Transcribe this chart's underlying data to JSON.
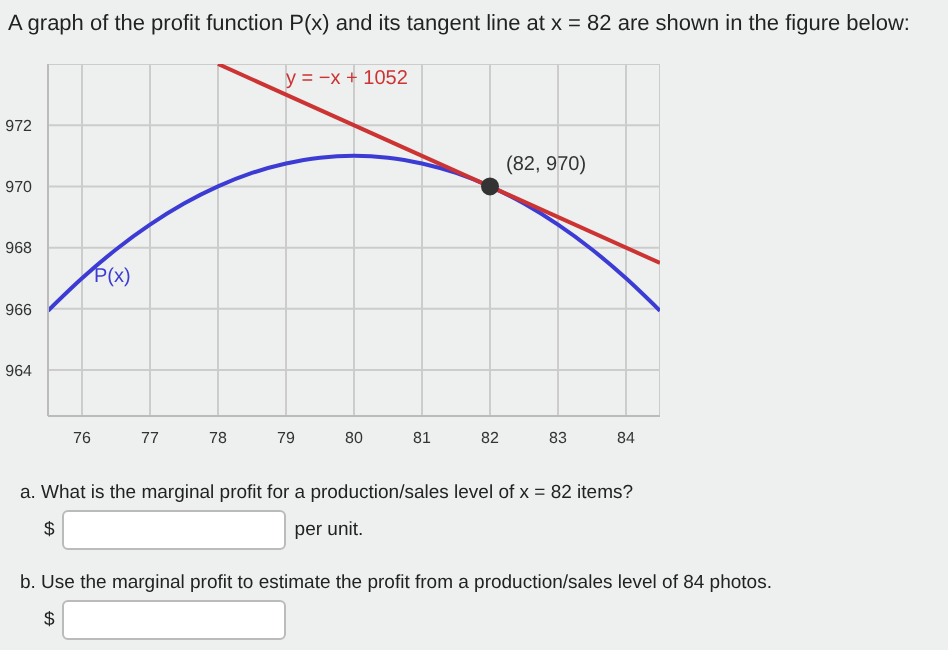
{
  "chart_data": {
    "type": "line",
    "title": "A graph of the profit function P(x) and its tangent line at x = 82 are shown in the figure below:",
    "series": [
      {
        "type": "line",
        "name": "P(x)",
        "color": "#3c3cd4",
        "x": [
          75.5,
          76,
          76.5,
          77,
          77.5,
          78,
          78.5,
          79,
          79.5,
          80,
          80.5,
          81,
          81.5,
          82,
          82.5,
          83,
          83.5,
          84,
          84.5
        ],
        "values": [
          965.94,
          967,
          967.94,
          968.75,
          969.44,
          970,
          970.44,
          970.75,
          970.94,
          971,
          970.94,
          970.75,
          970.44,
          970,
          969.44,
          968.75,
          967.94,
          967,
          965.94
        ]
      },
      {
        "type": "line",
        "name": "y = −x + 1052",
        "color": "#cc3333",
        "x": [
          78,
          84.5
        ],
        "values": [
          974,
          967.5
        ]
      },
      {
        "type": "scatter",
        "name": "(82, 970)",
        "color": "#333333",
        "x": [
          82
        ],
        "values": [
          970
        ]
      }
    ],
    "xlim": [
      75.5,
      84.5
    ],
    "xticks": [
      76,
      77,
      78,
      79,
      80,
      81,
      82,
      83,
      84
    ],
    "ylim": [
      962.5,
      974
    ],
    "yticks": [
      964,
      966,
      968,
      970,
      972
    ],
    "grid": true,
    "line_style": "solid",
    "annotations": [
      "a. What is the marginal profit for a production/sales level of x = 82 items?",
      "$",
      "per unit.",
      "b. Use the marginal profit to estimate the profit from a production/sales level of 84 photos.",
      "$"
    ]
  }
}
